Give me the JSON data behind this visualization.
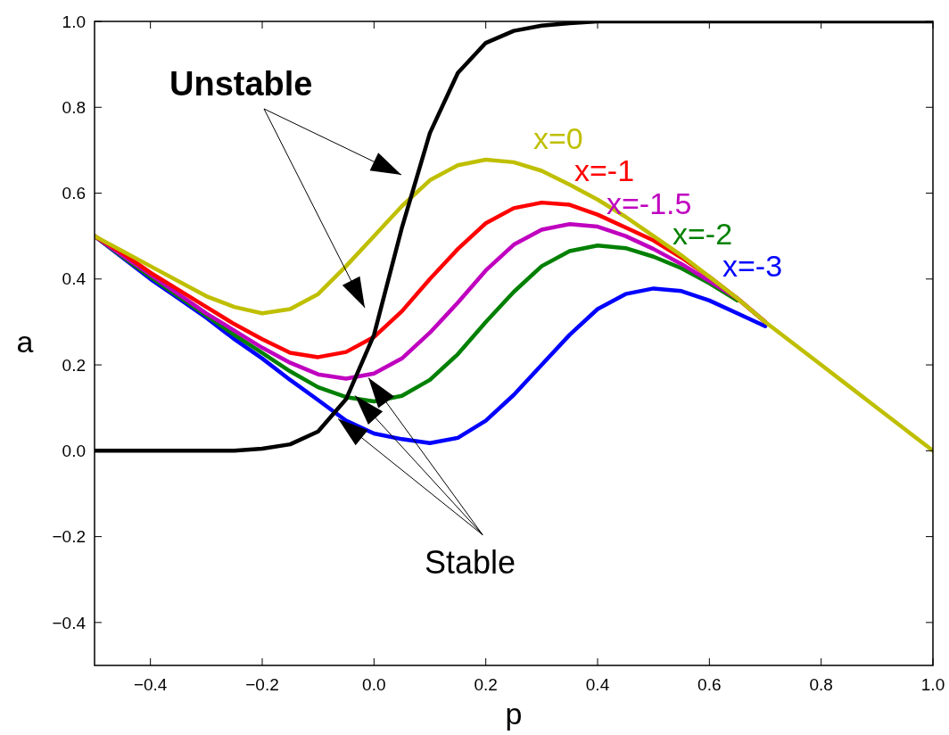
{
  "chart_data": {
    "type": "line",
    "xlabel": "p",
    "ylabel": "a",
    "xlim": [
      -0.5,
      1.0
    ],
    "ylim": [
      -0.5,
      1.0
    ],
    "xticks": [
      {
        "value": -0.4,
        "label": "−0.4"
      },
      {
        "value": -0.2,
        "label": "−0.2"
      },
      {
        "value": 0,
        "label": "0.0"
      },
      {
        "value": 0.2,
        "label": "0.2"
      },
      {
        "value": 0.4,
        "label": "0.4"
      },
      {
        "value": 0.6,
        "label": "0.6"
      },
      {
        "value": 0.8,
        "label": "0.8"
      },
      {
        "value": 1,
        "label": "1.0"
      }
    ],
    "yticks": [
      {
        "value": -0.4,
        "label": "−0.4"
      },
      {
        "value": -0.2,
        "label": "−0.2"
      },
      {
        "value": 0,
        "label": "0.0"
      },
      {
        "value": 0.2,
        "label": "0.2"
      },
      {
        "value": 0.4,
        "label": "0.4"
      },
      {
        "value": 0.6,
        "label": "0.6"
      },
      {
        "value": 0.8,
        "label": "0.8"
      },
      {
        "value": 1,
        "label": "1.0"
      }
    ],
    "grid": false,
    "marker": "none",
    "line_style": "solid",
    "x": [
      -0.5,
      -0.45,
      -0.4,
      -0.35,
      -0.3,
      -0.25,
      -0.2,
      -0.15,
      -0.1,
      -0.05,
      0,
      0.05,
      0.1,
      0.15,
      0.2,
      0.25,
      0.3,
      0.35,
      0.4,
      0.45,
      0.5,
      0.55,
      0.6,
      0.65,
      0.7,
      0.75,
      0.8,
      0.85,
      0.9,
      0.95,
      1.0
    ],
    "series": [
      {
        "name": "x=-3",
        "color": "#0000ff",
        "values": [
          0.5,
          0.45,
          0.4,
          0.355,
          0.31,
          0.26,
          0.215,
          0.165,
          0.118,
          0.07,
          0.04,
          0.027,
          0.018,
          0.03,
          0.07,
          0.13,
          0.2,
          0.27,
          0.33,
          0.365,
          0.378,
          0.372,
          0.35,
          0.32,
          0.29,
          null,
          null,
          null,
          null,
          null,
          null
        ]
      },
      {
        "name": "x=-2",
        "color": "#008000",
        "values": [
          0.5,
          0.452,
          0.405,
          0.36,
          0.315,
          0.27,
          0.228,
          0.185,
          0.148,
          0.125,
          0.115,
          0.128,
          0.165,
          0.225,
          0.3,
          0.37,
          0.43,
          0.465,
          0.478,
          0.472,
          0.452,
          0.425,
          0.39,
          0.35,
          null,
          null,
          null,
          null,
          null,
          null,
          null
        ]
      },
      {
        "name": "x=-1.5",
        "color": "#bf00bf",
        "values": [
          0.5,
          0.455,
          0.41,
          0.365,
          0.32,
          0.28,
          0.24,
          0.205,
          0.178,
          0.168,
          0.18,
          0.215,
          0.275,
          0.345,
          0.42,
          0.48,
          0.515,
          0.528,
          0.522,
          0.5,
          0.47,
          0.435,
          0.395,
          0.355,
          0.3,
          null,
          null,
          null,
          null,
          null,
          null
        ]
      },
      {
        "name": "x=-1",
        "color": "#ff0000",
        "values": [
          0.5,
          0.46,
          0.415,
          0.375,
          0.335,
          0.295,
          0.26,
          0.228,
          0.218,
          0.23,
          0.265,
          0.325,
          0.4,
          0.47,
          0.53,
          0.565,
          0.578,
          0.573,
          0.55,
          0.52,
          0.49,
          0.45,
          0.405,
          0.355,
          0.3,
          null,
          null,
          null,
          null,
          null,
          null
        ]
      },
      {
        "name": "x=0",
        "color": "#bfbf00",
        "values": [
          0.5,
          0.465,
          0.43,
          0.395,
          0.36,
          0.335,
          0.32,
          0.33,
          0.365,
          0.43,
          0.5,
          0.57,
          0.63,
          0.665,
          0.678,
          0.672,
          0.652,
          0.62,
          0.585,
          0.545,
          0.5,
          0.455,
          0.405,
          0.355,
          0.3,
          0.25,
          0.2,
          0.15,
          0.1,
          0.05,
          0
        ]
      },
      {
        "color": "#000000",
        "values": [
          0,
          0,
          0,
          0,
          0,
          0,
          0.005,
          0.015,
          0.045,
          0.12,
          0.27,
          0.52,
          0.74,
          0.88,
          0.95,
          0.978,
          0.99,
          0.996,
          1,
          1,
          1,
          1,
          1,
          1,
          1,
          1,
          1,
          1,
          1,
          1,
          1
        ]
      }
    ],
    "annotations": [
      "Unstable",
      {
        "text": "Stable",
        "x": -0.01,
        "y": 0.17
      }
    ]
  }
}
